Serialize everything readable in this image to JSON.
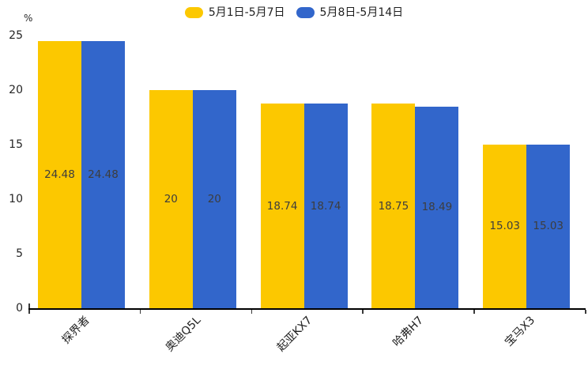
{
  "chart_data": {
    "type": "bar",
    "title": "",
    "xlabel": "",
    "ylabel": "%",
    "categories": [
      "探界者",
      "奥迪Q5L",
      "起亚KX7",
      "哈弗H7",
      "宝马X3"
    ],
    "series": [
      {
        "name": "5月1日-5月7日",
        "color": "#FCC800",
        "values": [
          24.48,
          20,
          18.74,
          18.75,
          15.03
        ]
      },
      {
        "name": "5月8日-5月14日",
        "color": "#3266CB",
        "values": [
          24.48,
          20,
          18.74,
          18.49,
          15.03
        ]
      }
    ],
    "value_labels": [
      [
        "24.48",
        "20",
        "18.74",
        "18.75",
        "15.03"
      ],
      [
        "24.48",
        "20",
        "18.74",
        "18.49",
        "15.03"
      ]
    ],
    "yticks": [
      0,
      5,
      10,
      15,
      20,
      25
    ],
    "ylim": [
      0,
      25
    ],
    "legend_position": "top-center",
    "grid": false,
    "bar_value_labels_position": "inside-center",
    "colors": {
      "axis_line": "#000000",
      "tick_mark": "#3a3a3a",
      "tick_label": "#262626",
      "value_label": "#3d3d3d",
      "legend_text": "#1f1f1f",
      "background": "#ffffff"
    }
  }
}
